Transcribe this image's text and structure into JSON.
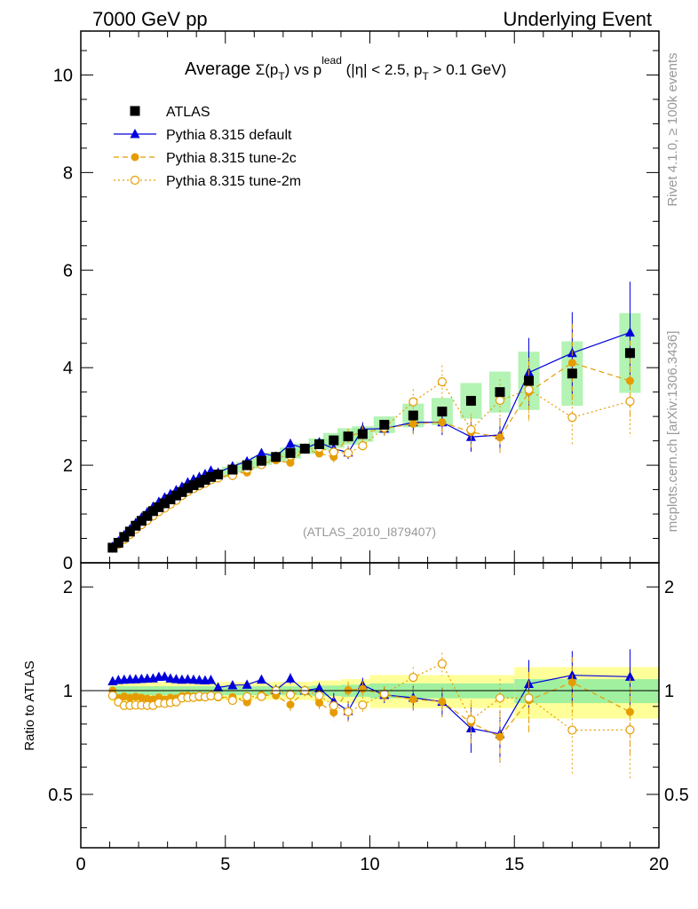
{
  "header": {
    "left_label": "7000 GeV pp",
    "right_label": "Underlying Event"
  },
  "side_labels": {
    "rivet": "Rivet 4.1.0, ≥ 100k events",
    "mcplots": "mcplots.cern.ch [arXiv:1306.3436]"
  },
  "colors": {
    "atlas": "#000000",
    "pythia_default": "#0000dd",
    "pythia_tune": "#e69c00",
    "band_stat": "#a0f0a0",
    "band_total": "#ffff99",
    "watermark": "#999999"
  },
  "chart_data": {
    "type": "scatter",
    "title": "Average Σ(p_T) vs p_T^lead (|η| < 2.5, p_T > 0.1 GeV)",
    "title_parts": {
      "average": "Average ",
      "sigma": "Σ(p",
      "T": "T",
      "vs": ") vs p",
      "lead": "lead",
      "eta": " (|η| < 2.5, p",
      "cut": " > 0.1 GeV)"
    },
    "analysis_id": "(ATLAS_2010_I879407)",
    "xlim": [
      0,
      20
    ],
    "ylim": [
      0,
      10.9
    ],
    "ratio_ylim": [
      0.35,
      2.35
    ],
    "ratio_ylabel": "Ratio to ATLAS",
    "x_ticks": [
      "0",
      "5",
      "10",
      "15",
      "20"
    ],
    "y_ticks": [
      "0",
      "2",
      "4",
      "6",
      "8",
      "10"
    ],
    "ratio_ticks": [
      "0.5",
      "1",
      "2"
    ],
    "legend": [
      {
        "label": "ATLAS",
        "marker": "square"
      },
      {
        "label": "Pythia 8.315 default",
        "marker": "triangle"
      },
      {
        "label": "Pythia 8.315 tune-2c",
        "marker": "circle"
      },
      {
        "label": "Pythia 8.315 tune-2m",
        "marker": "open-circle"
      }
    ],
    "x": [
      1.1,
      1.3,
      1.5,
      1.7,
      1.9,
      2.1,
      2.3,
      2.5,
      2.7,
      2.9,
      3.1,
      3.3,
      3.5,
      3.7,
      3.9,
      4.1,
      4.3,
      4.5,
      4.75,
      5.25,
      5.75,
      6.25,
      6.75,
      7.25,
      7.75,
      8.25,
      8.75,
      9.25,
      9.75,
      10.5,
      11.5,
      12.5,
      13.5,
      14.5,
      15.5,
      17.0,
      19.0
    ],
    "series": [
      {
        "name": "ATLAS",
        "values": [
          0.31,
          0.41,
          0.53,
          0.64,
          0.76,
          0.86,
          0.96,
          1.06,
          1.14,
          1.22,
          1.3,
          1.38,
          1.45,
          1.53,
          1.59,
          1.64,
          1.7,
          1.76,
          1.81,
          1.91,
          2.0,
          2.09,
          2.17,
          2.25,
          2.34,
          2.43,
          2.51,
          2.59,
          2.64,
          2.83,
          3.02,
          3.1,
          3.32,
          3.5,
          3.73,
          3.88,
          4.3
        ]
      },
      {
        "name": "Pythia 8.315 default",
        "values": [
          0.33,
          0.44,
          0.57,
          0.69,
          0.82,
          0.93,
          1.04,
          1.15,
          1.25,
          1.34,
          1.41,
          1.49,
          1.56,
          1.65,
          1.71,
          1.76,
          1.82,
          1.89,
          1.85,
          1.98,
          2.08,
          2.25,
          2.18,
          2.44,
          2.34,
          2.47,
          2.34,
          2.26,
          2.74,
          2.75,
          2.88,
          2.88,
          2.58,
          2.62,
          3.9,
          4.3,
          4.72
        ]
      },
      {
        "name": "Pythia 8.315 tune-2c",
        "values": [
          0.31,
          0.39,
          0.51,
          0.61,
          0.73,
          0.82,
          0.91,
          1.0,
          1.09,
          1.15,
          1.24,
          1.31,
          1.4,
          1.48,
          1.53,
          1.57,
          1.63,
          1.7,
          1.73,
          1.83,
          1.85,
          2.03,
          2.1,
          2.05,
          2.33,
          2.24,
          2.17,
          2.6,
          2.67,
          2.75,
          2.85,
          2.88,
          2.68,
          2.57,
          3.5,
          4.1,
          3.73
        ]
      },
      {
        "name": "Pythia 8.315 tune-2m",
        "values": [
          0.3,
          0.38,
          0.48,
          0.58,
          0.69,
          0.78,
          0.87,
          0.96,
          1.05,
          1.12,
          1.2,
          1.28,
          1.38,
          1.46,
          1.52,
          1.58,
          1.63,
          1.7,
          1.74,
          1.79,
          1.92,
          2.01,
          2.17,
          2.19,
          2.34,
          2.35,
          2.27,
          2.25,
          2.4,
          2.77,
          3.3,
          3.71,
          2.73,
          3.33,
          3.55,
          2.98,
          3.31
        ]
      }
    ],
    "error_fraction": [
      0.01,
      0.01,
      0.01,
      0.01,
      0.01,
      0.01,
      0.01,
      0.01,
      0.01,
      0.01,
      0.01,
      0.01,
      0.01,
      0.01,
      0.01,
      0.01,
      0.01,
      0.01,
      0.012,
      0.012,
      0.015,
      0.02,
      0.02,
      0.03,
      0.025,
      0.03,
      0.04,
      0.045,
      0.04,
      0.04,
      0.06,
      0.07,
      0.09,
      0.1,
      0.14,
      0.15,
      0.17
    ],
    "band_edges": [
      1.0,
      2.0,
      3.0,
      4.0,
      5.0,
      6.0,
      7.0,
      8.0,
      9.0,
      10.0,
      15.0,
      20.0
    ],
    "band_stat": [
      0.03,
      0.03,
      0.03,
      0.03,
      0.03,
      0.03,
      0.03,
      0.035,
      0.04,
      0.05,
      0.08
    ],
    "band_total": [
      0.07,
      0.06,
      0.06,
      0.06,
      0.06,
      0.06,
      0.06,
      0.07,
      0.08,
      0.11,
      0.17
    ]
  }
}
